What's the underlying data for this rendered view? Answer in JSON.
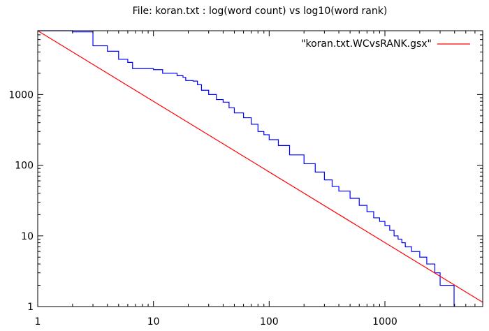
{
  "chart_data": {
    "type": "line",
    "title": "File: koran.txt : log(word count) vs log10(word rank)",
    "xlabel": "",
    "ylabel": "",
    "x_scale": "log",
    "y_scale": "log",
    "xlim": [
      1,
      7000
    ],
    "ylim": [
      1,
      8000
    ],
    "x_ticks": [
      {
        "value": 1,
        "label": "1"
      },
      {
        "value": 10,
        "label": "10"
      },
      {
        "value": 100,
        "label": "100"
      },
      {
        "value": 1000,
        "label": "1000"
      }
    ],
    "y_ticks": [
      {
        "value": 1,
        "label": "1"
      },
      {
        "value": 10,
        "label": "10"
      },
      {
        "value": 100,
        "label": "100"
      },
      {
        "value": 1000,
        "label": "1000"
      }
    ],
    "grid": false,
    "legend": {
      "placement": "top-right"
    },
    "series": [
      {
        "name": "",
        "color": "#0000ff",
        "style": "steps",
        "points": [
          [
            1,
            8000
          ],
          [
            2,
            7700
          ],
          [
            3,
            4900
          ],
          [
            4,
            4100
          ],
          [
            5,
            3150
          ],
          [
            6,
            2850
          ],
          [
            6.6,
            2330
          ],
          [
            10,
            2250
          ],
          [
            12,
            2000
          ],
          [
            16,
            1850
          ],
          [
            18,
            1750
          ],
          [
            19,
            1580
          ],
          [
            22,
            1550
          ],
          [
            24,
            1380
          ],
          [
            26,
            1150
          ],
          [
            30,
            1000
          ],
          [
            35,
            850
          ],
          [
            40,
            780
          ],
          [
            45,
            650
          ],
          [
            50,
            550
          ],
          [
            60,
            470
          ],
          [
            70,
            380
          ],
          [
            80,
            300
          ],
          [
            90,
            270
          ],
          [
            100,
            230
          ],
          [
            120,
            190
          ],
          [
            150,
            140
          ],
          [
            200,
            105
          ],
          [
            250,
            80
          ],
          [
            300,
            62
          ],
          [
            350,
            50
          ],
          [
            400,
            43
          ],
          [
            500,
            34
          ],
          [
            600,
            27
          ],
          [
            700,
            22
          ],
          [
            800,
            18
          ],
          [
            900,
            16
          ],
          [
            1000,
            14
          ],
          [
            1100,
            12
          ],
          [
            1200,
            10
          ],
          [
            1300,
            9
          ],
          [
            1400,
            8
          ],
          [
            1500,
            7
          ],
          [
            1700,
            6
          ],
          [
            2000,
            5
          ],
          [
            2300,
            4
          ],
          [
            2700,
            3
          ],
          [
            3000,
            2
          ],
          [
            3900,
            2
          ],
          [
            3960,
            1
          ]
        ]
      },
      {
        "name": "\"koran.txt.WCvsRANK.gsx\"",
        "color": "#ff0000",
        "style": "line",
        "points": [
          [
            1,
            8000
          ],
          [
            7000,
            1.15
          ]
        ]
      }
    ]
  }
}
